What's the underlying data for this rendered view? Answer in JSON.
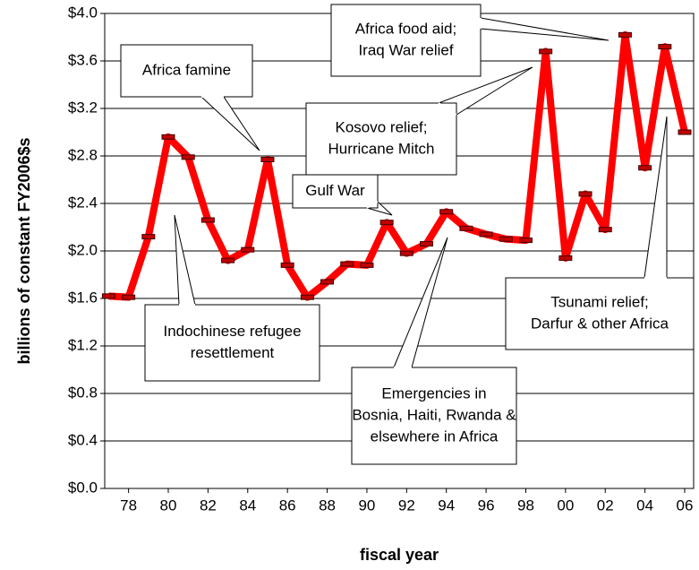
{
  "chart_data": {
    "type": "line",
    "y_label": "billions of constant FY2006$s",
    "x_label": "fiscal year",
    "x": [
      1977,
      1978,
      1979,
      1980,
      1981,
      1982,
      1983,
      1984,
      1985,
      1986,
      1987,
      1988,
      1989,
      1990,
      1991,
      1992,
      1993,
      1994,
      1995,
      1996,
      1997,
      1998,
      1999,
      2000,
      2001,
      2002,
      2003,
      2004,
      2005,
      2006
    ],
    "series": [
      {
        "color": "#ff0000",
        "values": [
          1.62,
          1.61,
          2.12,
          2.96,
          2.79,
          2.26,
          1.92,
          2.01,
          2.77,
          1.88,
          1.61,
          1.74,
          1.89,
          1.88,
          2.24,
          1.98,
          2.06,
          2.33,
          2.19,
          2.14,
          2.1,
          2.09,
          3.68,
          1.94,
          2.48,
          2.18,
          3.82,
          2.7,
          3.72,
          3.0
        ]
      }
    ],
    "xlim": [
      1976.8,
      2006.45
    ],
    "xticks": [
      {
        "value": 1978,
        "label": "78"
      },
      {
        "value": 1980,
        "label": "80"
      },
      {
        "value": 1982,
        "label": "82"
      },
      {
        "value": 1984,
        "label": "84"
      },
      {
        "value": 1986,
        "label": "86"
      },
      {
        "value": 1988,
        "label": "88"
      },
      {
        "value": 1990,
        "label": "90"
      },
      {
        "value": 1992,
        "label": "92"
      },
      {
        "value": 1994,
        "label": "94"
      },
      {
        "value": 1996,
        "label": "96"
      },
      {
        "value": 1998,
        "label": "98"
      },
      {
        "value": 2000,
        "label": "00"
      },
      {
        "value": 2002,
        "label": "02"
      },
      {
        "value": 2004,
        "label": "04"
      },
      {
        "value": 2006,
        "label": "06"
      }
    ],
    "ylim": [
      0,
      4
    ],
    "yticks": [
      {
        "value": 0,
        "label": "$0.0"
      },
      {
        "value": 0.4,
        "label": "$0.4"
      },
      {
        "value": 0.8,
        "label": "$0.8"
      },
      {
        "value": 1.2,
        "label": "$1.2"
      },
      {
        "value": 1.6,
        "label": "$1.6"
      },
      {
        "value": 2.0,
        "label": "$2.0"
      },
      {
        "value": 2.4,
        "label": "$2.4"
      },
      {
        "value": 2.8,
        "label": "$2.8"
      },
      {
        "value": 3.2,
        "label": "$3.2"
      },
      {
        "value": 3.6,
        "label": "$3.6"
      },
      {
        "value": 4.0,
        "label": "$4.0"
      }
    ],
    "grid": true,
    "annotations": [
      {
        "lines": [
          "Africa famine"
        ]
      },
      {
        "lines": [
          "Africa food aid;",
          "Iraq War relief"
        ]
      },
      {
        "lines": [
          "Kosovo relief;",
          "Hurricane Mitch"
        ]
      },
      {
        "lines": [
          "Gulf War"
        ]
      },
      {
        "lines": [
          "Indochinese refugee",
          "resettlement"
        ]
      },
      {
        "lines": [
          "Emergencies in",
          "Bosnia, Haiti, Rwanda &",
          "elsewhere in Africa"
        ]
      },
      {
        "lines": [
          "Tsunami relief;",
          "Darfur & other Africa"
        ]
      }
    ]
  }
}
